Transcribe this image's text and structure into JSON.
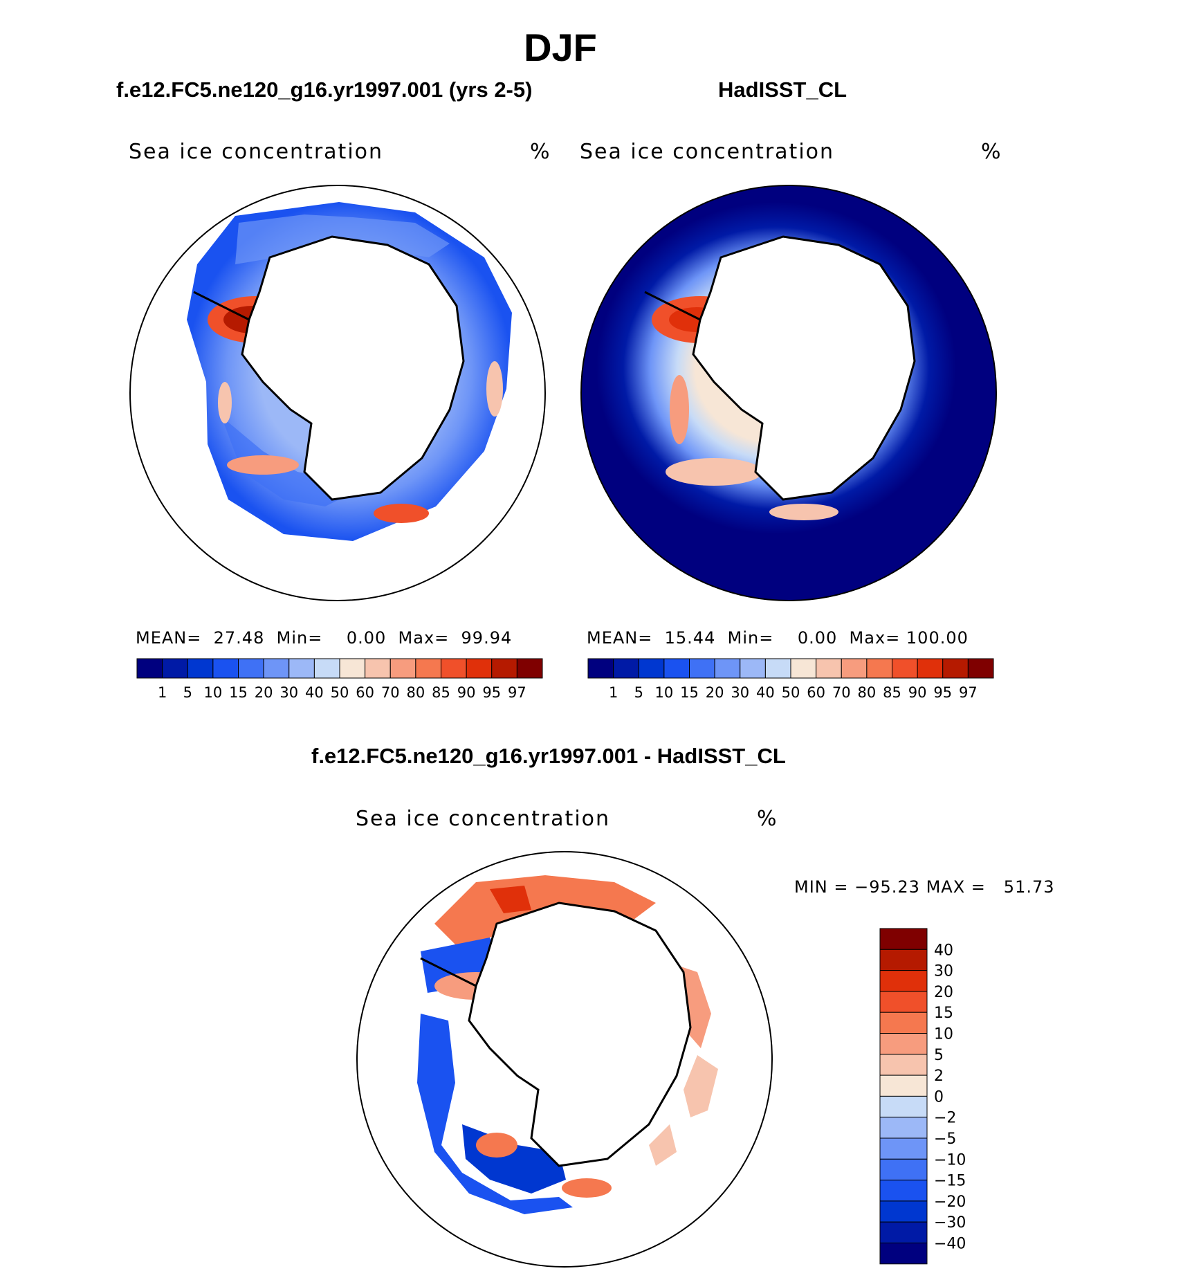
{
  "figure": {
    "title": "DJF",
    "colors": {
      "background": "#ffffff",
      "ink": "#000000",
      "land": "#ffffff"
    }
  },
  "panels": [
    {
      "id": "model",
      "run_title": "f.e12.FC5.ne120_g16.yr1997.001 (yrs 2-5)",
      "label": "Sea ice concentration",
      "unit": "%",
      "stats": {
        "mean_label": "MEAN=",
        "mean": "27.48",
        "min_label": "Min=",
        "min": "0.00",
        "max_label": "Max=",
        "max": "99.94"
      },
      "colorbar_ticks": [
        "1",
        "5",
        "10",
        "15",
        "20",
        "30",
        "40",
        "50",
        "60",
        "70",
        "80",
        "85",
        "90",
        "95",
        "97"
      ]
    },
    {
      "id": "obs",
      "run_title": "HadISST_CL",
      "label": "Sea ice concentration",
      "unit": "%",
      "stats": {
        "mean_label": "MEAN=",
        "mean": "15.44",
        "min_label": "Min=",
        "min": "0.00",
        "max_label": "Max=",
        "max": "100.00"
      },
      "colorbar_ticks": [
        "1",
        "5",
        "10",
        "15",
        "20",
        "30",
        "40",
        "50",
        "60",
        "70",
        "80",
        "85",
        "90",
        "95",
        "97"
      ]
    },
    {
      "id": "diff",
      "run_title": "f.e12.FC5.ne120_g16.yr1997.001 - HadISST_CL",
      "label": "Sea ice concentration",
      "unit": "%",
      "stats": {
        "min_label": "MIN =",
        "min": "−95.23",
        "max_label": "MAX =",
        "max": "51.73"
      },
      "colorbar_ticks": [
        "40",
        "30",
        "20",
        "15",
        "10",
        "5",
        "2",
        "0",
        "−2",
        "−5",
        "−10",
        "−15",
        "−20",
        "−30",
        "−40"
      ]
    }
  ],
  "chart_data": [
    {
      "type": "heatmap",
      "projection": "south-polar-stereographic",
      "title": "f.e12.FC5.ne120_g16.yr1997.001 (yrs 2-5)",
      "variable": "Sea ice concentration",
      "unit": "%",
      "levels": [
        1,
        5,
        10,
        15,
        20,
        30,
        40,
        50,
        60,
        70,
        80,
        85,
        90,
        95,
        97
      ],
      "colormap": [
        "#00007f",
        "#001aa6",
        "#0037d0",
        "#1a52f0",
        "#3f71f5",
        "#6e95f7",
        "#9cb8f7",
        "#c7dbf7",
        "#f7e6d6",
        "#f7c4ae",
        "#f79c7e",
        "#f5784f",
        "#f0502a",
        "#e0300a",
        "#b51a00",
        "#7f0000"
      ],
      "mean": 27.48,
      "min": 0.0,
      "max": 99.94
    },
    {
      "type": "heatmap",
      "projection": "south-polar-stereographic",
      "title": "HadISST_CL",
      "variable": "Sea ice concentration",
      "unit": "%",
      "levels": [
        1,
        5,
        10,
        15,
        20,
        30,
        40,
        50,
        60,
        70,
        80,
        85,
        90,
        95,
        97
      ],
      "colormap": [
        "#00007f",
        "#001aa6",
        "#0037d0",
        "#1a52f0",
        "#3f71f5",
        "#6e95f7",
        "#9cb8f7",
        "#c7dbf7",
        "#f7e6d6",
        "#f7c4ae",
        "#f79c7e",
        "#f5784f",
        "#f0502a",
        "#e0300a",
        "#b51a00",
        "#7f0000"
      ],
      "mean": 15.44,
      "min": 0.0,
      "max": 100.0
    },
    {
      "type": "heatmap",
      "projection": "south-polar-stereographic",
      "title": "f.e12.FC5.ne120_g16.yr1997.001 - HadISST_CL",
      "variable": "Sea ice concentration",
      "unit": "%",
      "levels": [
        -40,
        -30,
        -20,
        -15,
        -10,
        -5,
        -2,
        0,
        2,
        5,
        10,
        15,
        20,
        30,
        40
      ],
      "colormap": [
        "#00007f",
        "#001aa6",
        "#0037d0",
        "#1a52f0",
        "#3f71f5",
        "#6e95f7",
        "#9cb8f7",
        "#c7dbf7",
        "#f7e6d6",
        "#f7c4ae",
        "#f79c7e",
        "#f5784f",
        "#f0502a",
        "#e0300a",
        "#b51a00",
        "#7f0000"
      ],
      "min": -95.23,
      "max": 51.73
    }
  ]
}
